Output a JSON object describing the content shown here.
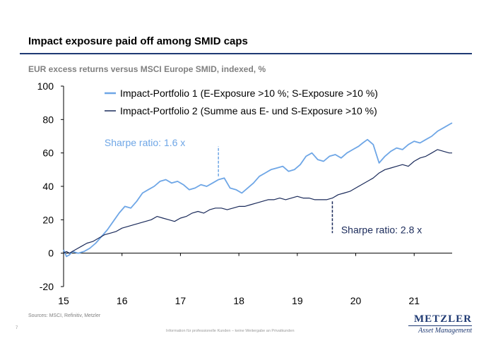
{
  "header": {
    "title": "Impact exposure paid off among SMID caps",
    "subtitle": "EUR excess returns versus MSCI Europe SMID, indexed, %"
  },
  "footer": {
    "sources": "Sources: MSCI, Refinitiv, Metzler",
    "page_number": "7",
    "note": "Information für professionelle Kunden – keine Weitergabe an Privatkunden",
    "logo_main": "METZLER",
    "logo_sub": "Asset Management"
  },
  "colors": {
    "series1": "#6ea6e6",
    "series2": "#1a2a5a",
    "title_rule": "#1f3a73",
    "axis": "#000000"
  },
  "chart_data": {
    "type": "line",
    "ylim": [
      -20,
      100
    ],
    "yticks": [
      -20,
      0,
      20,
      40,
      60,
      80,
      100
    ],
    "xlim": [
      2015.0,
      2021.65
    ],
    "xticks": [
      2015,
      2016,
      2017,
      2018,
      2019,
      2020,
      2021
    ],
    "xticklabels": [
      "15",
      "16",
      "17",
      "18",
      "19",
      "20",
      "21"
    ],
    "grid": false,
    "legend_position": "top-left",
    "series": [
      {
        "name": "Impact-Portfolio 1 (E-Exposure >10 %; S-Exposure >10 %)",
        "color": "#6ea6e6",
        "x": [
          2015.0,
          2015.05,
          2015.1,
          2015.15,
          2015.25,
          2015.35,
          2015.45,
          2015.55,
          2015.65,
          2015.75,
          2015.85,
          2015.95,
          2016.05,
          2016.15,
          2016.25,
          2016.35,
          2016.45,
          2016.55,
          2016.65,
          2016.75,
          2016.85,
          2016.95,
          2017.05,
          2017.15,
          2017.25,
          2017.35,
          2017.45,
          2017.55,
          2017.65,
          2017.75,
          2017.85,
          2017.95,
          2018.05,
          2018.15,
          2018.25,
          2018.35,
          2018.45,
          2018.55,
          2018.65,
          2018.75,
          2018.85,
          2018.95,
          2019.05,
          2019.15,
          2019.25,
          2019.35,
          2019.45,
          2019.55,
          2019.65,
          2019.75,
          2019.85,
          2019.95,
          2020.05,
          2020.12,
          2020.2,
          2020.3,
          2020.4,
          2020.5,
          2020.6,
          2020.7,
          2020.8,
          2020.9,
          2021.0,
          2021.1,
          2021.2,
          2021.3,
          2021.4,
          2021.5,
          2021.6,
          2021.65
        ],
        "values": [
          2,
          -2,
          -1,
          1,
          0,
          1,
          3,
          6,
          10,
          14,
          19,
          24,
          28,
          27,
          31,
          36,
          38,
          40,
          43,
          44,
          42,
          43,
          41,
          38,
          39,
          41,
          40,
          42,
          44,
          45,
          39,
          38,
          36,
          39,
          42,
          46,
          48,
          50,
          51,
          52,
          49,
          50,
          53,
          58,
          60,
          56,
          55,
          58,
          59,
          57,
          60,
          62,
          64,
          66,
          68,
          65,
          54,
          58,
          61,
          63,
          62,
          65,
          67,
          66,
          68,
          70,
          73,
          75,
          77,
          78
        ]
      },
      {
        "name": "Impact-Portfolio 2 (Summe aus E- und S-Exposure >10 %)",
        "color": "#1a2a5a",
        "x": [
          2015.0,
          2015.05,
          2015.1,
          2015.2,
          2015.3,
          2015.4,
          2015.5,
          2015.6,
          2015.7,
          2015.8,
          2015.9,
          2016.0,
          2016.1,
          2016.2,
          2016.3,
          2016.4,
          2016.5,
          2016.6,
          2016.7,
          2016.8,
          2016.9,
          2017.0,
          2017.1,
          2017.2,
          2017.3,
          2017.4,
          2017.5,
          2017.6,
          2017.7,
          2017.8,
          2017.9,
          2018.0,
          2018.1,
          2018.2,
          2018.3,
          2018.4,
          2018.5,
          2018.6,
          2018.7,
          2018.8,
          2018.9,
          2019.0,
          2019.1,
          2019.2,
          2019.3,
          2019.4,
          2019.5,
          2019.6,
          2019.7,
          2019.8,
          2019.9,
          2020.0,
          2020.1,
          2020.2,
          2020.3,
          2020.4,
          2020.5,
          2020.6,
          2020.7,
          2020.8,
          2020.9,
          2021.0,
          2021.1,
          2021.2,
          2021.3,
          2021.4,
          2021.5,
          2021.6,
          2021.65
        ],
        "values": [
          0,
          1,
          0,
          2,
          4,
          6,
          7,
          9,
          11,
          12,
          13,
          15,
          16,
          17,
          18,
          19,
          20,
          22,
          21,
          20,
          19,
          21,
          22,
          24,
          25,
          24,
          26,
          27,
          27,
          26,
          27,
          28,
          28,
          29,
          30,
          31,
          32,
          32,
          33,
          32,
          33,
          34,
          33,
          33,
          32,
          32,
          32,
          33,
          35,
          36,
          37,
          39,
          41,
          43,
          45,
          48,
          50,
          51,
          52,
          53,
          52,
          55,
          57,
          58,
          60,
          62,
          61,
          60,
          60
        ]
      }
    ],
    "annotations": [
      {
        "text": "Sharpe ratio: 1.6 x",
        "x": 2015.7,
        "y": 64,
        "color": "#6ea6e6",
        "marker_x": 2017.65,
        "marker_y_from": 46,
        "marker_y_to": 64
      },
      {
        "text": "Sharpe ratio: 2.8 x",
        "x": 2019.75,
        "y": 12,
        "color": "#1a2a5a",
        "marker_x": 2019.6,
        "marker_y_from": 31,
        "marker_y_to": 12
      }
    ]
  }
}
